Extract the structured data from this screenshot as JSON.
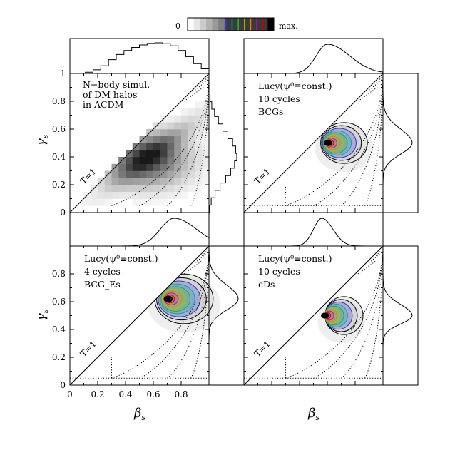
{
  "colorbar": {
    "min_label": "0",
    "max_label": "max.",
    "colors": [
      "#ffffff",
      "#e6e6e6",
      "#cccccc",
      "#b3b3b3",
      "#999999",
      "#808080",
      "#3333cc",
      "#00aaaa",
      "#33aa33",
      "#aaaa00",
      "#dd8800",
      "#cc00cc",
      "#cc0000",
      "#000000"
    ]
  },
  "axes": {
    "xlabel": "β",
    "xlabel_sub": "s",
    "ylabel": "γ",
    "ylabel_sub": "s",
    "xticks": [
      "0",
      "0.2",
      "0.4",
      "0.6",
      "0.8"
    ],
    "yticks": [
      "0",
      "0.2",
      "0.4",
      "0.6",
      "0.8",
      "1"
    ],
    "t1_label": "T=1"
  },
  "chart_data": [
    {
      "type": "heatmap",
      "panel": "top-left",
      "annotation": [
        "N−body simul.",
        "of DM halos",
        "in ΛCDM"
      ],
      "peak": {
        "beta": 0.56,
        "gamma": 0.38
      },
      "xlim": [
        0,
        1
      ],
      "ylim": [
        0,
        1
      ],
      "marginal_beta": [
        0,
        0,
        0.04,
        0.12,
        0.25,
        0.45,
        0.62,
        0.75,
        0.85,
        0.93,
        0.98,
        1.0,
        0.97,
        0.9,
        0.75,
        0.55,
        0.32,
        0.15
      ],
      "marginal_gamma": [
        0.02,
        0.08,
        0.22,
        0.4,
        0.6,
        0.78,
        0.92,
        1.0,
        0.96,
        0.85,
        0.68,
        0.5,
        0.34,
        0.2,
        0.1,
        0.04
      ]
    },
    {
      "type": "heatmap",
      "panel": "top-right",
      "annotation": [
        "Lucy(ψ⁰≡const.)",
        "10 cycles",
        "BCGs"
      ],
      "peak": {
        "beta": 0.6,
        "gamma": 0.5
      },
      "xlim": [
        0,
        1
      ],
      "ylim": [
        0,
        1
      ]
    },
    {
      "type": "heatmap",
      "panel": "bottom-left",
      "annotation": [
        "Lucy(ψ⁰≡const.)",
        "4 cycles",
        "BCG_Es"
      ],
      "peak": {
        "beta": 0.7,
        "gamma": 0.62
      },
      "xlim": [
        0,
        1
      ],
      "ylim": [
        0,
        1
      ]
    },
    {
      "type": "heatmap",
      "panel": "bottom-right",
      "annotation": [
        "Lucy(ψ⁰≡const.)",
        "10 cycles",
        "cDs"
      ],
      "peak": {
        "beta": 0.58,
        "gamma": 0.5
      },
      "xlim": [
        0,
        1
      ],
      "ylim": [
        0,
        1
      ]
    }
  ]
}
